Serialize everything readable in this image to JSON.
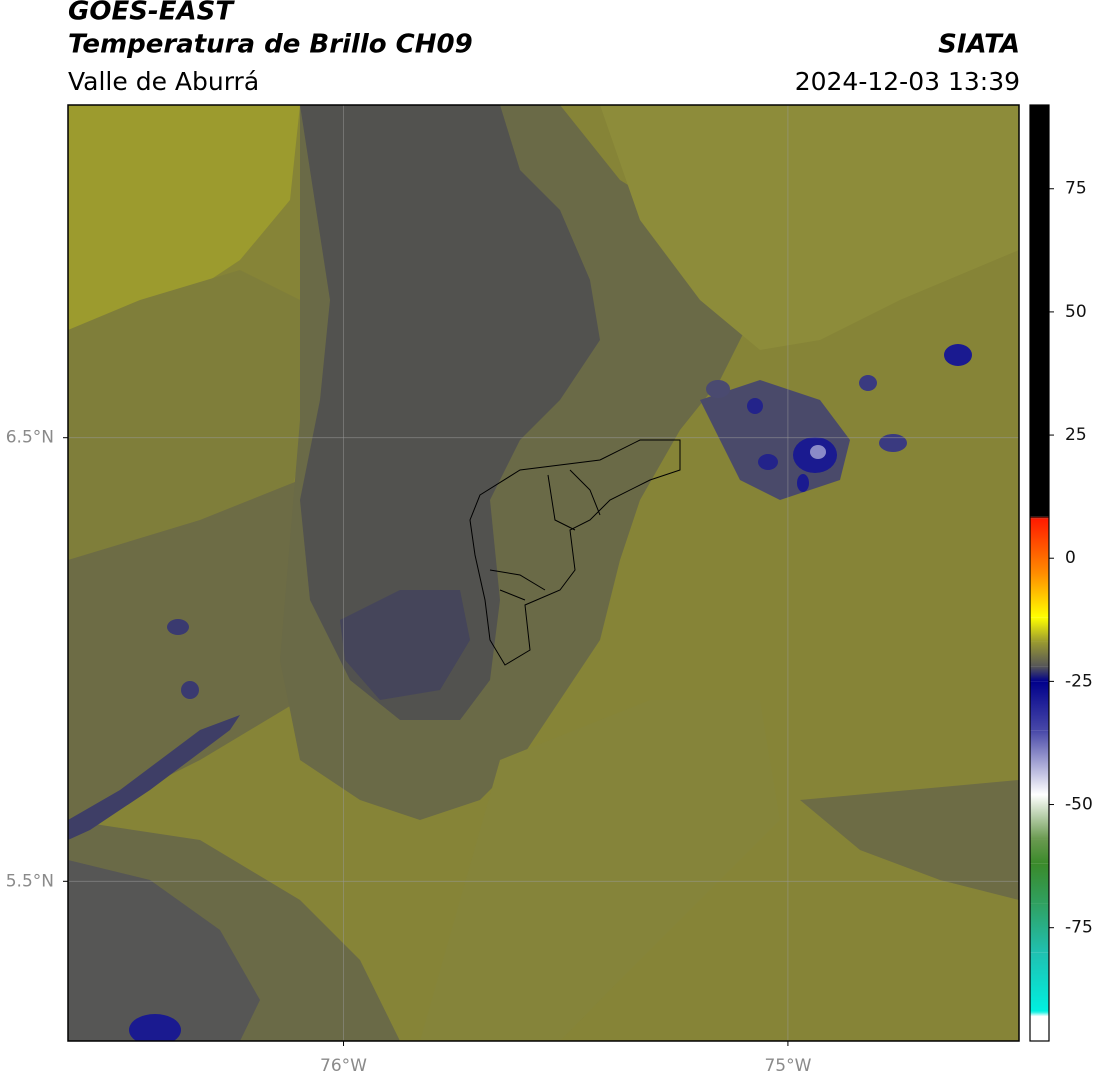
{
  "header": {
    "title": "GOES-EAST",
    "subtitle": "Temperatura de Brillo CH09",
    "region": "Valle de Aburrá",
    "source": "SIATA",
    "datetime": "2024-12-03 13:39"
  },
  "map": {
    "xlim": [
      -76.62,
      -74.48
    ],
    "ylim": [
      5.14,
      7.25
    ],
    "xticks": [
      {
        "value": -76,
        "label": "76°W"
      },
      {
        "value": -75,
        "label": "75°W"
      }
    ],
    "yticks": [
      {
        "value": 6.5,
        "label": "6.5°N"
      },
      {
        "value": 5.5,
        "label": "5.5°N"
      }
    ],
    "grid": true
  },
  "colorbar": {
    "lim": [
      -98,
      92
    ],
    "ticks": [
      75,
      50,
      25,
      0,
      -25,
      -50,
      -75
    ],
    "colormap": [
      {
        "value": 92,
        "color": "#000000"
      },
      {
        "value": 8.5,
        "color": "#000000"
      },
      {
        "value": 8,
        "color": "#ff1a00"
      },
      {
        "value": -3,
        "color": "#ff8c00"
      },
      {
        "value": -12,
        "color": "#ffff00"
      },
      {
        "value": -17,
        "color": "#9a9a30"
      },
      {
        "value": -22,
        "color": "#555558"
      },
      {
        "value": -25,
        "color": "#00008b"
      },
      {
        "value": -35,
        "color": "#4848a8"
      },
      {
        "value": -48,
        "color": "#ffffff"
      },
      {
        "value": -57,
        "color": "#6a9a50"
      },
      {
        "value": -62,
        "color": "#3a8a2a"
      },
      {
        "value": -70,
        "color": "#30a060"
      },
      {
        "value": -80,
        "color": "#20c0b0"
      },
      {
        "value": -92,
        "color": "#00f0e0"
      },
      {
        "value": -93,
        "color": "#ffffff"
      },
      {
        "value": -98,
        "color": "#ffffff"
      }
    ]
  }
}
